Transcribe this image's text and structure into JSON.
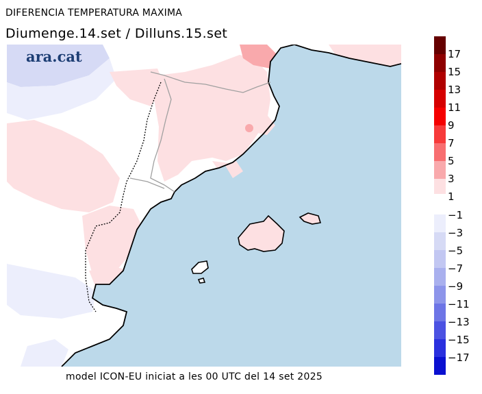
{
  "title": "DIFERENCIA TEMPERATURA MAXIMA",
  "subtitle": "Diumenge.14.set  /  Dilluns.15.set",
  "footer": "model ICON-EU iniciat a les 00 UTC del 14 set 2025",
  "logo": "ara.cat",
  "colors": {
    "sea": "#bcd9ea",
    "land_neutral": "#ffffff",
    "warm_1": "#fde0e2",
    "warm_3": "#f9a9ac",
    "cool_1": "#eceefc",
    "cool_3": "#d6daf5",
    "coast": "#000000",
    "border": "#a0a0a0"
  },
  "legend": {
    "labels": [
      "17",
      "15",
      "13",
      "11",
      "9",
      "7",
      "5",
      "3",
      "1",
      "−1",
      "−3",
      "−5",
      "−7",
      "−9",
      "−11",
      "−13",
      "−15",
      "−17"
    ],
    "warm_colors": [
      "#650000",
      "#8e0000",
      "#b00000",
      "#d60000",
      "#f50000",
      "#f73a3a",
      "#f86e70",
      "#f9a9ac",
      "#fde0e2"
    ],
    "cool_colors": [
      "#ffffff",
      "#eceefc",
      "#d6daf5",
      "#c2c7f2",
      "#a9b0ee",
      "#8d95ea",
      "#6d75e6",
      "#4b52e2",
      "#2a30de",
      "#0a10d0"
    ]
  }
}
